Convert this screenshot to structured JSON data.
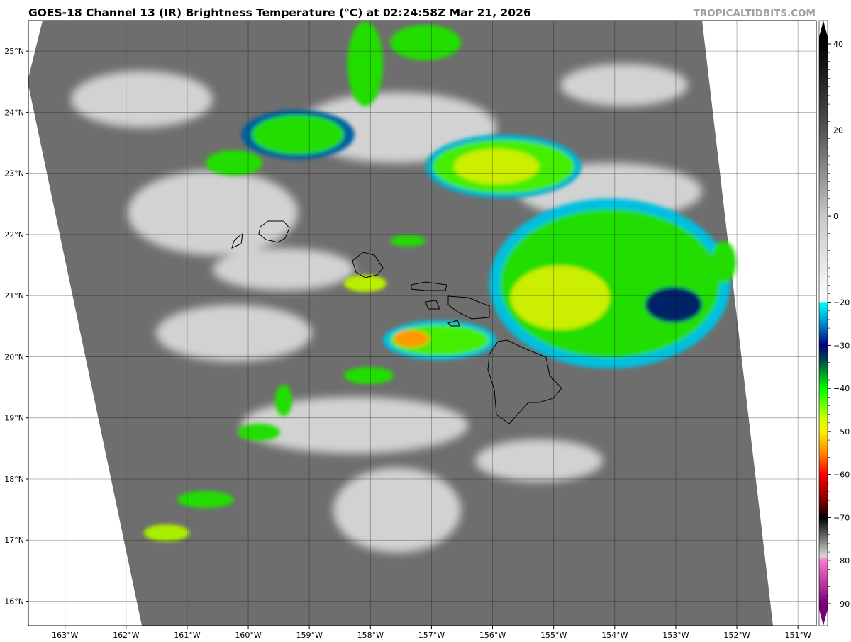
{
  "title": "GOES-18 Channel 13 (IR) Brightness Temperature (°C) at 02:24:58Z Mar 21, 2026",
  "watermark": "TROPICALTIDBITS.COM",
  "map": {
    "lon_labels": [
      "163°W",
      "162°W",
      "161°W",
      "160°W",
      "159°W",
      "158°W",
      "157°W",
      "156°W",
      "155°W",
      "154°W",
      "153°W",
      "152°W",
      "151°W"
    ],
    "lat_labels": [
      "25°N",
      "24°N",
      "23°N",
      "22°N",
      "21°N",
      "20°N",
      "19°N",
      "18°N",
      "17°N",
      "16°N"
    ],
    "lon_range": [
      -163.6,
      -150.7
    ],
    "lat_range": [
      15.6,
      25.5
    ],
    "grid": true
  },
  "colorbar": {
    "range": [
      -90,
      40
    ],
    "tick_labels": [
      "40",
      "20",
      "0",
      "−20",
      "−30",
      "−40",
      "−50",
      "−60",
      "−70",
      "−80",
      "−90"
    ],
    "tick_values": [
      40,
      20,
      0,
      -20,
      -30,
      -40,
      -50,
      -60,
      -70,
      -80,
      -90
    ],
    "stops": [
      {
        "v": 40,
        "c": "#000000"
      },
      {
        "v": 20,
        "c": "#555555"
      },
      {
        "v": 0,
        "c": "#c8c8c8"
      },
      {
        "v": -19.9,
        "c": "#ffffff"
      },
      {
        "v": -20,
        "c": "#00ffff"
      },
      {
        "v": -25,
        "c": "#0088cc"
      },
      {
        "v": -30,
        "c": "#000080"
      },
      {
        "v": -34,
        "c": "#005544"
      },
      {
        "v": -40,
        "c": "#00ff00"
      },
      {
        "v": -47,
        "c": "#ccff00"
      },
      {
        "v": -50,
        "c": "#ffee00"
      },
      {
        "v": -55,
        "c": "#ff8800"
      },
      {
        "v": -60,
        "c": "#ff0000"
      },
      {
        "v": -67,
        "c": "#660000"
      },
      {
        "v": -70,
        "c": "#000000"
      },
      {
        "v": -79,
        "c": "#d8d8d8"
      },
      {
        "v": -79.9,
        "c": "#ff77cc"
      },
      {
        "v": -90,
        "c": "#770077"
      }
    ]
  }
}
